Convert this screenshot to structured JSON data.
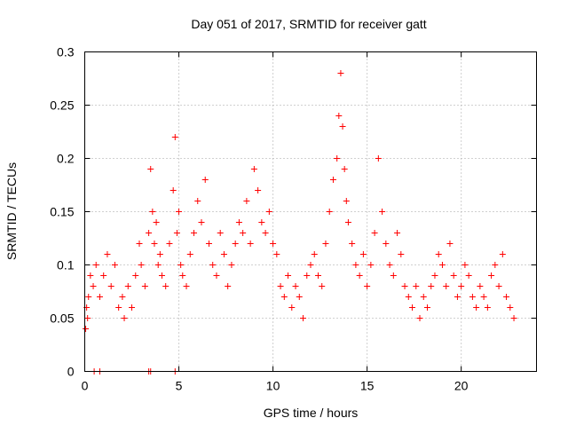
{
  "chart_data": {
    "type": "scatter",
    "title": "Day 051 of 2017, SRMTID for receiver gatt",
    "xlabel": "GPS time / hours",
    "ylabel": "SRMTID / TECUs",
    "xlim": [
      0,
      24
    ],
    "ylim": [
      0,
      0.3
    ],
    "xticks": [
      0,
      5,
      10,
      15,
      20
    ],
    "xtick_labels": [
      "0",
      "5",
      "10",
      "15",
      "20"
    ],
    "yticks": [
      0,
      0.05,
      0.1,
      0.15,
      0.2,
      0.25,
      0.3
    ],
    "ytick_labels": [
      "0",
      "0.05",
      "0.1",
      "0.15",
      "0.2",
      "0.25",
      "0.3"
    ],
    "grid": true,
    "marker": "plus",
    "color": "#ff0000",
    "series": [
      {
        "name": "SRMTID",
        "x": [
          0.05,
          0.1,
          0.15,
          0.2,
          0.3,
          0.45,
          0.6,
          0.8,
          1.0,
          1.2,
          1.4,
          1.6,
          1.8,
          2.0,
          2.1,
          2.3,
          2.5,
          2.7,
          2.9,
          3.0,
          3.2,
          3.4,
          3.5,
          3.6,
          3.7,
          3.8,
          3.9,
          4.0,
          4.1,
          4.3,
          4.5,
          4.7,
          4.8,
          4.9,
          5.0,
          5.1,
          5.2,
          5.4,
          5.6,
          5.8,
          6.0,
          6.2,
          6.4,
          6.6,
          6.8,
          7.0,
          7.2,
          7.4,
          7.6,
          7.8,
          8.0,
          8.2,
          8.4,
          8.6,
          8.8,
          9.0,
          9.2,
          9.4,
          9.6,
          9.8,
          10.0,
          10.2,
          10.4,
          10.6,
          10.8,
          11.0,
          11.2,
          11.4,
          11.6,
          11.8,
          12.0,
          12.2,
          12.4,
          12.6,
          12.8,
          13.0,
          13.2,
          13.4,
          13.5,
          13.6,
          13.7,
          13.8,
          13.9,
          14.0,
          14.2,
          14.4,
          14.6,
          14.8,
          15.0,
          15.2,
          15.4,
          15.6,
          15.8,
          16.0,
          16.2,
          16.4,
          16.6,
          16.8,
          17.0,
          17.2,
          17.4,
          17.6,
          17.8,
          18.0,
          18.2,
          18.4,
          18.6,
          18.8,
          19.0,
          19.2,
          19.4,
          19.6,
          19.8,
          20.0,
          20.2,
          20.4,
          20.6,
          20.8,
          21.0,
          21.2,
          21.4,
          21.6,
          21.8,
          22.0,
          22.2,
          22.4,
          22.6,
          22.8
        ],
        "y": [
          0.04,
          0.06,
          0.05,
          0.07,
          0.09,
          0.08,
          0.1,
          0.07,
          0.09,
          0.11,
          0.08,
          0.1,
          0.06,
          0.07,
          0.05,
          0.08,
          0.06,
          0.09,
          0.12,
          0.1,
          0.08,
          0.13,
          0.19,
          0.15,
          0.12,
          0.14,
          0.1,
          0.11,
          0.09,
          0.08,
          0.12,
          0.17,
          0.22,
          0.13,
          0.15,
          0.1,
          0.09,
          0.08,
          0.11,
          0.13,
          0.16,
          0.14,
          0.18,
          0.12,
          0.1,
          0.09,
          0.13,
          0.11,
          0.08,
          0.1,
          0.12,
          0.14,
          0.13,
          0.16,
          0.12,
          0.19,
          0.17,
          0.14,
          0.13,
          0.15,
          0.12,
          0.11,
          0.08,
          0.07,
          0.09,
          0.06,
          0.08,
          0.07,
          0.05,
          0.09,
          0.1,
          0.11,
          0.09,
          0.08,
          0.12,
          0.15,
          0.18,
          0.2,
          0.24,
          0.28,
          0.23,
          0.19,
          0.16,
          0.14,
          0.12,
          0.1,
          0.09,
          0.11,
          0.08,
          0.1,
          0.13,
          0.2,
          0.15,
          0.12,
          0.1,
          0.09,
          0.13,
          0.11,
          0.08,
          0.07,
          0.06,
          0.08,
          0.05,
          0.07,
          0.06,
          0.08,
          0.09,
          0.11,
          0.1,
          0.08,
          0.12,
          0.09,
          0.07,
          0.08,
          0.1,
          0.09,
          0.07,
          0.06,
          0.08,
          0.07,
          0.06,
          0.09,
          0.1,
          0.08,
          0.11,
          0.07,
          0.06,
          0.05
        ]
      }
    ],
    "zero_markers_x": [
      0.5,
      0.8,
      3.4,
      3.5,
      4.8
    ]
  }
}
